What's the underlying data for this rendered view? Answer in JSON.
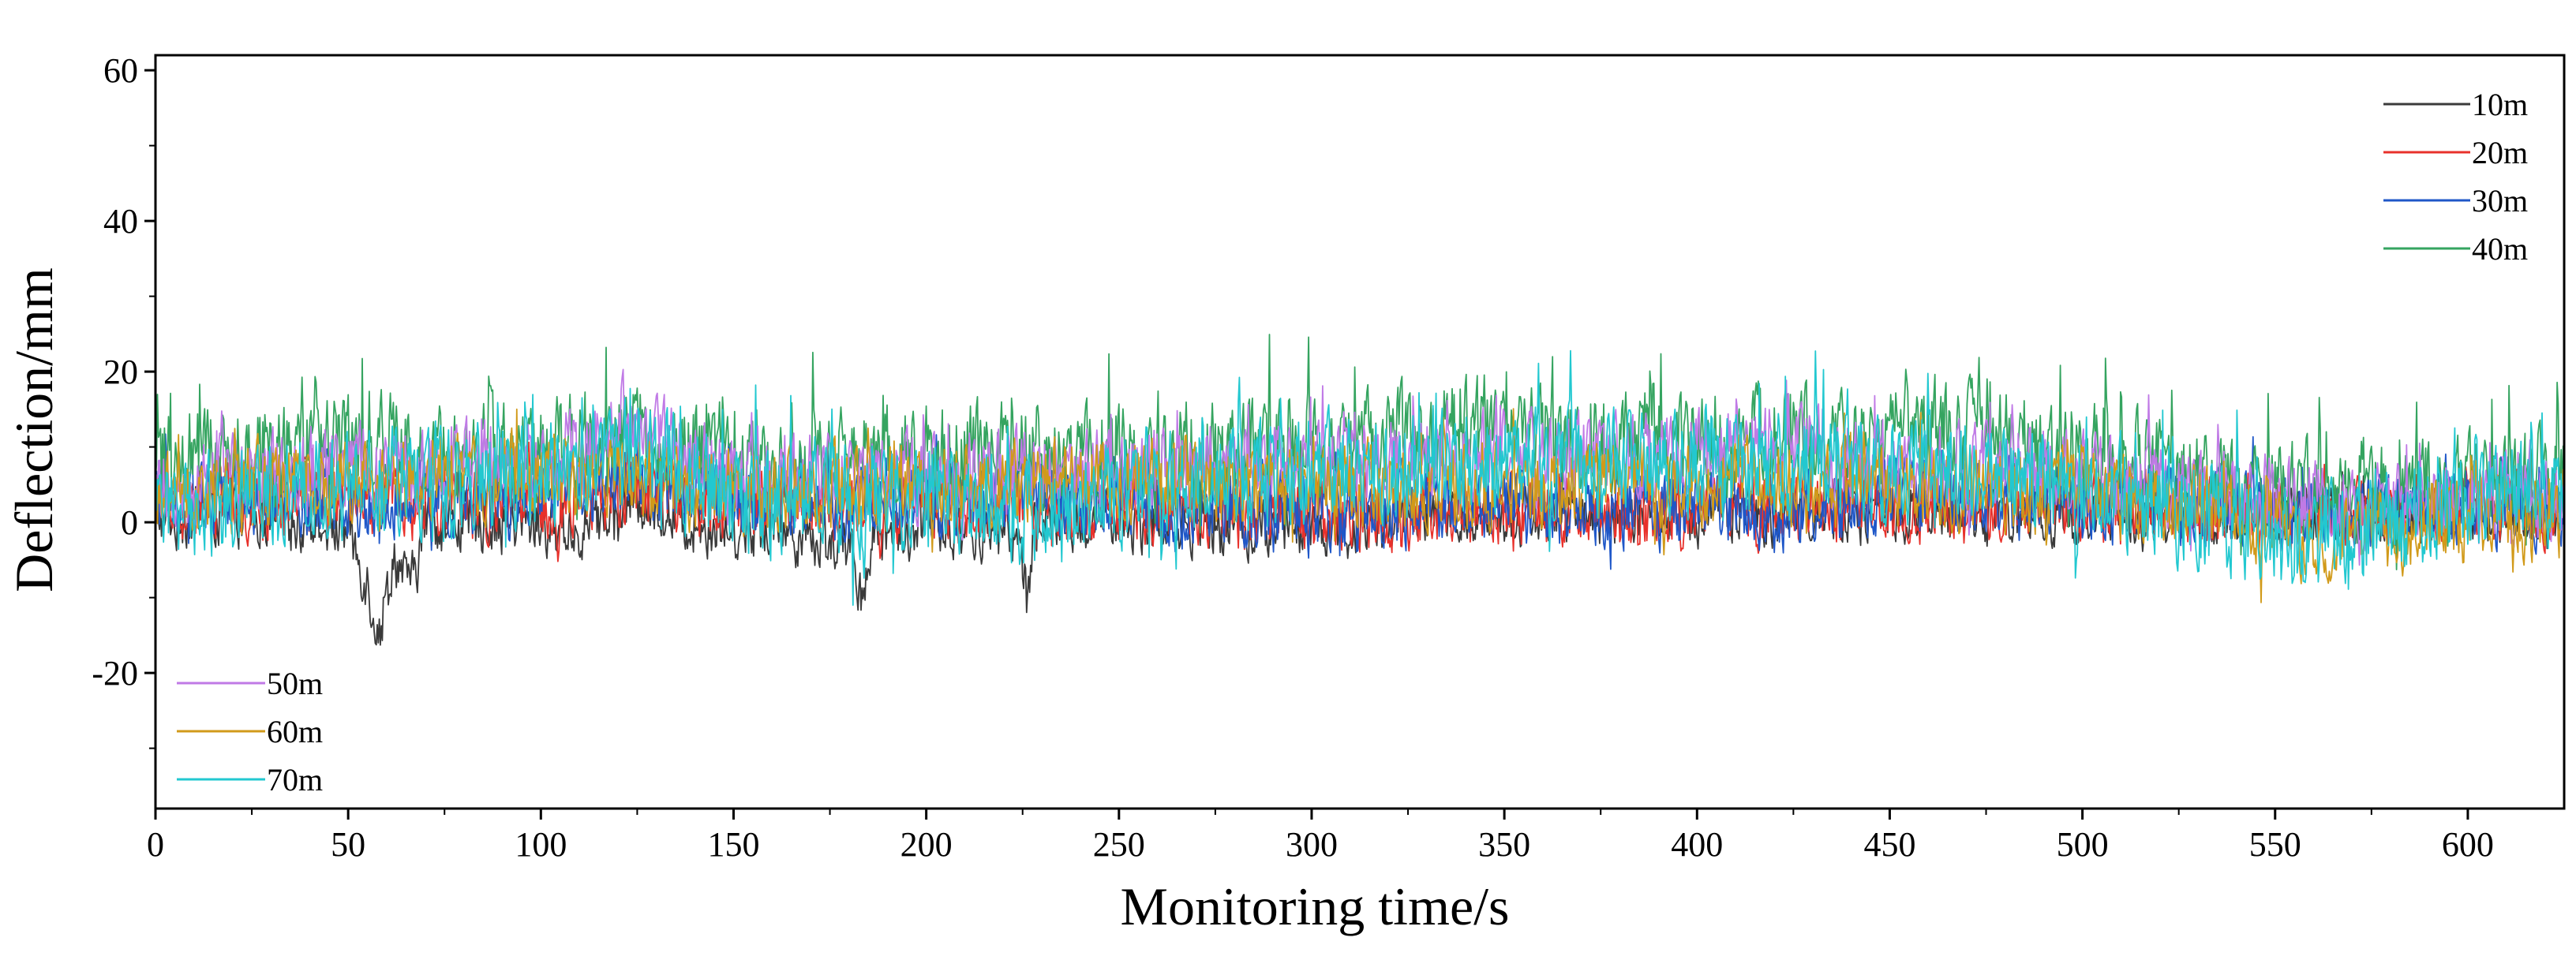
{
  "chart_data": {
    "type": "line",
    "title": "",
    "xlabel": "Monitoring time/s",
    "ylabel": "Deflection/mm",
    "xlim": [
      0,
      625
    ],
    "ylim": [
      -38,
      62
    ],
    "xticks": [
      0,
      50,
      100,
      150,
      200,
      250,
      300,
      350,
      400,
      450,
      500,
      550,
      600
    ],
    "yticks": [
      -20,
      0,
      20,
      40,
      60
    ],
    "x_tick_labels": [
      "0",
      "50",
      "100",
      "150",
      "200",
      "250",
      "300",
      "350",
      "400",
      "450",
      "500",
      "550",
      "600"
    ],
    "y_tick_labels": [
      "-20",
      "0",
      "20",
      "40",
      "60"
    ],
    "grid": false,
    "legend_groups": [
      {
        "placement": "top-right",
        "entries": [
          "10m",
          "20m",
          "30m",
          "40m"
        ]
      },
      {
        "placement": "bottom-left",
        "entries": [
          "50m",
          "60m",
          "70m"
        ]
      }
    ],
    "series": [
      {
        "name": "10m",
        "color": "#3a3a3a",
        "noise": 2.2,
        "spike": 3,
        "knots_x": [
          0,
          25,
          50,
          55,
          58,
          62,
          66,
          70,
          90,
          110,
          120,
          125,
          135,
          160,
          180,
          183,
          186,
          200,
          224,
          226,
          228,
          260,
          300,
          350,
          400,
          450,
          500,
          530,
          550,
          600,
          625
        ],
        "knots_y": [
          1,
          1,
          -1,
          -8,
          -15,
          -4,
          -10,
          0,
          0,
          -1,
          2,
          3,
          0,
          -1,
          -3,
          -10,
          -2,
          0,
          -2,
          -10,
          0,
          0,
          -1,
          1,
          1,
          1,
          1,
          0,
          1,
          1,
          1
        ]
      },
      {
        "name": "20m",
        "color": "#e8312b",
        "noise": 2.6,
        "spike": 4,
        "knots_x": [
          0,
          50,
          100,
          110,
          113,
          116,
          125,
          150,
          200,
          250,
          300,
          350,
          400,
          425,
          428,
          432,
          450,
          500,
          550,
          600,
          625
        ],
        "knots_y": [
          2,
          3,
          2,
          3,
          4,
          3,
          4,
          2,
          2,
          2,
          1,
          2,
          1,
          2,
          3,
          2,
          2,
          2,
          1,
          2,
          2
        ]
      },
      {
        "name": "30m",
        "color": "#1f57c8",
        "noise": 2.8,
        "spike": 5,
        "knots_x": [
          0,
          50,
          100,
          125,
          150,
          200,
          250,
          300,
          330,
          350,
          400,
          430,
          450,
          500,
          550,
          600,
          625
        ],
        "knots_y": [
          3,
          3,
          4,
          6,
          3,
          3,
          3,
          1,
          2,
          2,
          2,
          1,
          3,
          3,
          1,
          2,
          2
        ]
      },
      {
        "name": "40m",
        "color": "#35a460",
        "noise": 3.6,
        "spike": 10,
        "knots_x": [
          0,
          50,
          70,
          100,
          120,
          150,
          200,
          250,
          300,
          335,
          340,
          350,
          400,
          450,
          460,
          500,
          540,
          560,
          600,
          625
        ],
        "knots_y": [
          8,
          10,
          10,
          9,
          12,
          8,
          9,
          9,
          10,
          12,
          15,
          11,
          11,
          11,
          13,
          9,
          5,
          4,
          5,
          6
        ]
      },
      {
        "name": "50m",
        "color": "#c07ae6",
        "noise": 3.0,
        "spike": 6,
        "knots_x": [
          0,
          50,
          80,
          100,
          120,
          150,
          200,
          250,
          300,
          350,
          400,
          420,
          450,
          500,
          540,
          560,
          600,
          625
        ],
        "knots_y": [
          5,
          7,
          8,
          8,
          14,
          6,
          6,
          7,
          8,
          9,
          9,
          11,
          8,
          7,
          3,
          2,
          3,
          3
        ]
      },
      {
        "name": "60m",
        "color": "#d19a1a",
        "noise": 3.0,
        "spike": 6,
        "knots_x": [
          0,
          50,
          100,
          150,
          200,
          250,
          300,
          350,
          400,
          450,
          500,
          540,
          560,
          600,
          625
        ],
        "knots_y": [
          3,
          6,
          6,
          4,
          5,
          5,
          5,
          5,
          5,
          5,
          4,
          1,
          -2,
          0,
          1
        ]
      },
      {
        "name": "70m",
        "color": "#22c8d0",
        "noise": 3.8,
        "spike": 9,
        "knots_x": [
          0,
          20,
          50,
          100,
          120,
          140,
          150,
          200,
          220,
          235,
          250,
          300,
          350,
          400,
          450,
          500,
          540,
          555,
          580,
          600,
          625
        ],
        "knots_y": [
          2,
          3,
          5,
          6,
          11,
          6,
          3,
          3,
          2,
          1,
          4,
          7,
          8,
          8,
          7,
          5,
          0,
          -3,
          0,
          3,
          4
        ]
      }
    ]
  }
}
